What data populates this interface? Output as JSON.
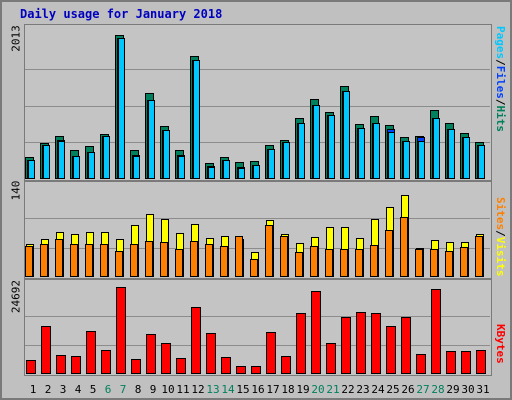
{
  "title": "Daily usage for January 2018",
  "colors": {
    "hits": "#00805c",
    "files": "#0040ff",
    "pages": "#00c8ff",
    "visits": "#ffff00",
    "sites": "#ff8000",
    "kbytes": "#ff0000",
    "weekday_label": "#000000",
    "weekend_label": "#00805c"
  },
  "chart_data": [
    {
      "type": "bar",
      "title": "Daily usage for January 2018",
      "axis_max_label": "2013",
      "ylim": [
        0,
        2013
      ],
      "grid": true,
      "legend": "right",
      "legend_parts": [
        {
          "name": "Pages",
          "color_key": "pages"
        },
        {
          "name": "Files",
          "color_key": "files"
        },
        {
          "name": "Hits",
          "color_key": "hits"
        }
      ],
      "categories": [
        "1",
        "2",
        "3",
        "4",
        "5",
        "6",
        "7",
        "8",
        "9",
        "10",
        "11",
        "12",
        "13",
        "14",
        "15",
        "16",
        "17",
        "18",
        "19",
        "20",
        "21",
        "22",
        "23",
        "24",
        "25",
        "26",
        "27",
        "28",
        "29",
        "30",
        "31"
      ],
      "series": [
        {
          "name": "Hits",
          "color_key": "hits",
          "values": [
            300,
            495,
            590,
            395,
            450,
            620,
            1975,
            400,
            1180,
            720,
            395,
            1685,
            220,
            305,
            230,
            240,
            460,
            540,
            830,
            1100,
            920,
            1280,
            750,
            860,
            745,
            570,
            585,
            940,
            770,
            630,
            500
          ]
        },
        {
          "name": "Files",
          "color_key": "files",
          "values": [
            255,
            465,
            530,
            320,
            375,
            585,
            1930,
            325,
            1080,
            670,
            325,
            1630,
            175,
            265,
            160,
            195,
            410,
            500,
            765,
            1020,
            880,
            1205,
            695,
            765,
            685,
            525,
            575,
            835,
            690,
            580,
            460
          ]
        },
        {
          "name": "Pages",
          "color_key": "pages",
          "values": [
            255,
            465,
            515,
            310,
            370,
            585,
            1925,
            320,
            1080,
            670,
            310,
            1630,
            170,
            265,
            155,
            195,
            410,
            500,
            765,
            1020,
            880,
            1205,
            695,
            765,
            640,
            525,
            515,
            835,
            690,
            570,
            460
          ]
        }
      ]
    },
    {
      "type": "bar",
      "axis_max_label": "140",
      "ylim": [
        0,
        140
      ],
      "grid": true,
      "legend": "right",
      "legend_parts": [
        {
          "name": "Sites",
          "color_key": "sites"
        },
        {
          "name": "Visits",
          "color_key": "visits"
        }
      ],
      "categories": [
        "1",
        "2",
        "3",
        "4",
        "5",
        "6",
        "7",
        "8",
        "9",
        "10",
        "11",
        "12",
        "13",
        "14",
        "15",
        "16",
        "17",
        "18",
        "19",
        "20",
        "21",
        "22",
        "23",
        "24",
        "25",
        "26",
        "27",
        "28",
        "29",
        "30",
        "31"
      ],
      "series": [
        {
          "name": "Visits",
          "color_key": "visits",
          "values": [
            52,
            60,
            72,
            68,
            71,
            71,
            60,
            83,
            100,
            92,
            70,
            85,
            62,
            65,
            60,
            40,
            90,
            68,
            54,
            64,
            80,
            79,
            62,
            93,
            111,
            130,
            46,
            59,
            56,
            55,
            69
          ]
        },
        {
          "name": "Sites",
          "color_key": "sites",
          "values": [
            50,
            52,
            61,
            53,
            53,
            52,
            41,
            52,
            57,
            56,
            44,
            57,
            52,
            49,
            66,
            29,
            83,
            66,
            40,
            50,
            45,
            45,
            44,
            51,
            74,
            95,
            44,
            45,
            42,
            48,
            65
          ]
        }
      ]
    },
    {
      "type": "bar",
      "axis_max_label": "24692",
      "ylim": [
        0,
        24692
      ],
      "grid": true,
      "legend": "right",
      "legend_parts": [
        {
          "name": "KBytes",
          "color_key": "kbytes"
        }
      ],
      "categories": [
        "1",
        "2",
        "3",
        "4",
        "5",
        "6",
        "7",
        "8",
        "9",
        "10",
        "11",
        "12",
        "13",
        "14",
        "15",
        "16",
        "17",
        "18",
        "19",
        "20",
        "21",
        "22",
        "23",
        "24",
        "25",
        "26",
        "27",
        "28",
        "29",
        "30",
        "31"
      ],
      "series": [
        {
          "name": "KBytes",
          "color_key": "kbytes",
          "values": [
            4100,
            13500,
            5300,
            5200,
            12300,
            6700,
            24600,
            4200,
            11400,
            8700,
            4400,
            19000,
            11600,
            4700,
            2400,
            2400,
            11800,
            5100,
            17200,
            23600,
            8800,
            16200,
            17700,
            17200,
            13700,
            16200,
            5800,
            24100,
            6500,
            6500,
            6900
          ]
        }
      ]
    }
  ],
  "x_axis_days": [
    {
      "label": "1",
      "weekend": false
    },
    {
      "label": "2",
      "weekend": false
    },
    {
      "label": "3",
      "weekend": false
    },
    {
      "label": "4",
      "weekend": false
    },
    {
      "label": "5",
      "weekend": false
    },
    {
      "label": "6",
      "weekend": true
    },
    {
      "label": "7",
      "weekend": true
    },
    {
      "label": "8",
      "weekend": false
    },
    {
      "label": "9",
      "weekend": false
    },
    {
      "label": "10",
      "weekend": false
    },
    {
      "label": "11",
      "weekend": false
    },
    {
      "label": "12",
      "weekend": false
    },
    {
      "label": "13",
      "weekend": true
    },
    {
      "label": "14",
      "weekend": true
    },
    {
      "label": "15",
      "weekend": false
    },
    {
      "label": "16",
      "weekend": false
    },
    {
      "label": "17",
      "weekend": false
    },
    {
      "label": "18",
      "weekend": false
    },
    {
      "label": "19",
      "weekend": false
    },
    {
      "label": "20",
      "weekend": true
    },
    {
      "label": "21",
      "weekend": true
    },
    {
      "label": "22",
      "weekend": false
    },
    {
      "label": "23",
      "weekend": false
    },
    {
      "label": "24",
      "weekend": false
    },
    {
      "label": "25",
      "weekend": false
    },
    {
      "label": "26",
      "weekend": false
    },
    {
      "label": "27",
      "weekend": true
    },
    {
      "label": "28",
      "weekend": true
    },
    {
      "label": "29",
      "weekend": false
    },
    {
      "label": "30",
      "weekend": false
    },
    {
      "label": "31",
      "weekend": false
    }
  ]
}
